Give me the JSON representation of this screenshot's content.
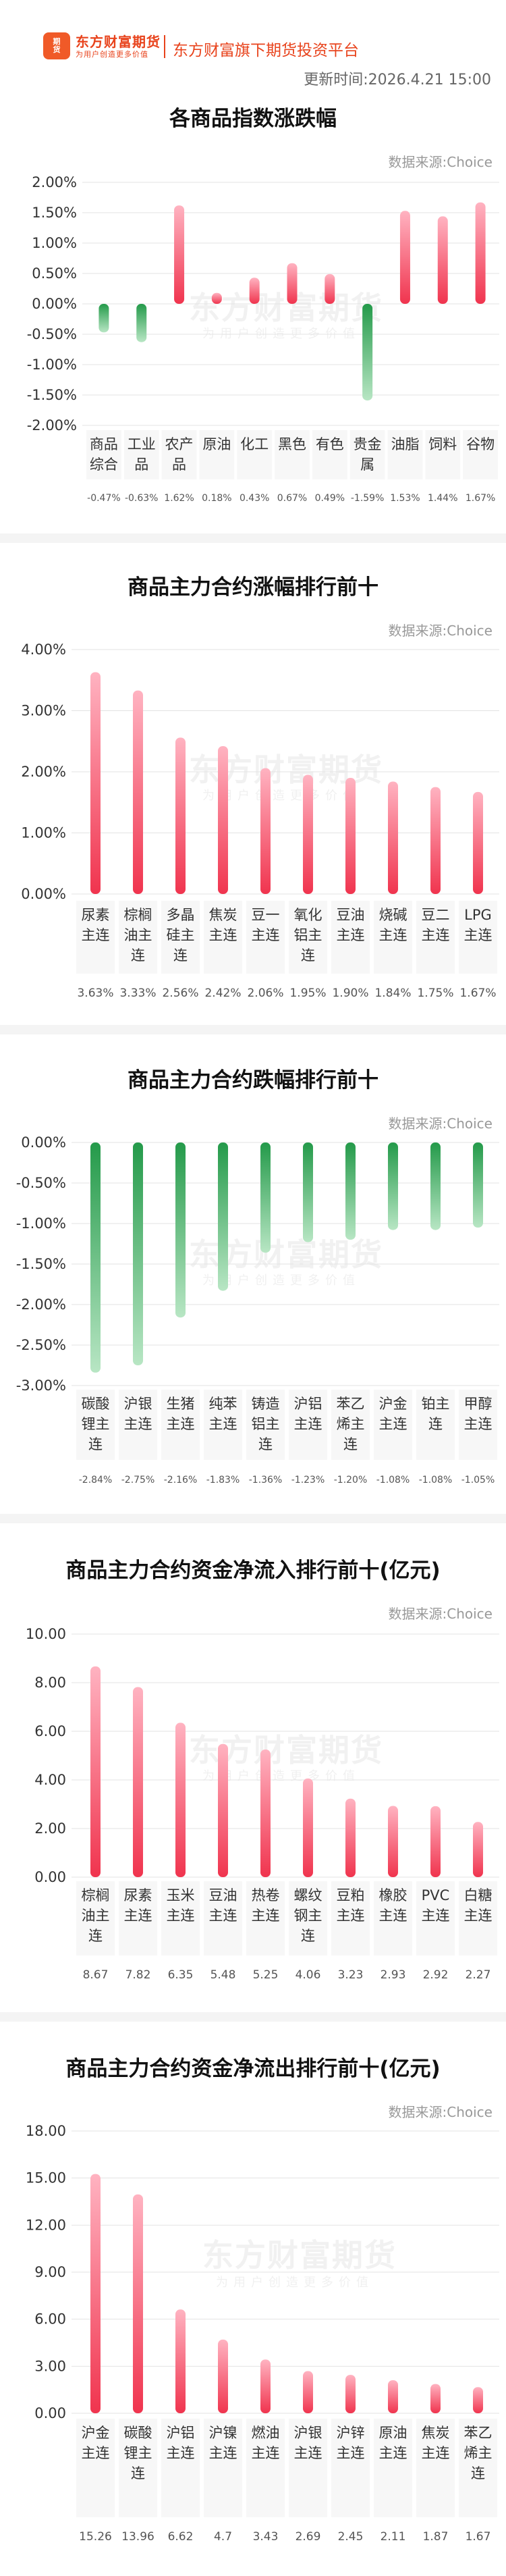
{
  "header": {
    "logo_line1": "期",
    "logo_line2": "货",
    "brand_name": "东方财富期货",
    "brand_slogan": "为用户创造更多价值",
    "platform": "东方财富旗下期货投资平台",
    "update_label": "更新时间:",
    "update_time": "2026.4.21 15:00"
  },
  "watermark": {
    "text": "东方财富期货",
    "sub": "为用户创造更多价值"
  },
  "colors": {
    "up_top": "#ffb3c1",
    "up_bottom": "#f0344e",
    "down_top": "#249a4a",
    "down_bottom": "#b8e6c4",
    "grid": "#e3e3e3",
    "axis_text": "#333333",
    "value_text": "#555555"
  },
  "charts": [
    {
      "title": "各商品指数涨跌幅",
      "source": "数据来源:Choice",
      "chart_data": {
        "type": "bar",
        "categories": [
          "商品综合",
          "工业品",
          "农产品",
          "原油",
          "化工",
          "黑色",
          "有色",
          "贵金属",
          "油脂",
          "饲料",
          "谷物"
        ],
        "values": [
          -0.47,
          -0.63,
          1.62,
          0.18,
          0.43,
          0.67,
          0.49,
          -1.59,
          1.53,
          1.44,
          1.67
        ],
        "value_labels": [
          "-0.47%",
          "-0.63%",
          "1.62%",
          "0.18%",
          "0.43%",
          "0.67%",
          "0.49%",
          "-1.59%",
          "1.53%",
          "1.44%",
          "1.67%"
        ],
        "ylim": [
          -2,
          2
        ],
        "yticks": [
          2,
          1.5,
          1,
          0.5,
          0,
          -0.5,
          -1,
          -1.5,
          -2
        ],
        "ytick_labels": [
          "2.00%",
          "1.50%",
          "1.00%",
          "0.50%",
          "0.00%",
          "-0.50%",
          "-1.00%",
          "-1.50%",
          "-2.00%"
        ],
        "grid": true
      }
    },
    {
      "title": "商品主力合约涨幅排行前十",
      "source": "数据来源:Choice",
      "chart_data": {
        "type": "bar",
        "categories": [
          "尿素主连",
          "棕榈油主连",
          "多晶硅主连",
          "焦炭主连",
          "豆一主连",
          "氧化铝主连",
          "豆油主连",
          "烧碱主连",
          "豆二主连",
          "LPG主连"
        ],
        "values": [
          3.63,
          3.33,
          2.56,
          2.42,
          2.06,
          1.95,
          1.9,
          1.84,
          1.75,
          1.67
        ],
        "value_labels": [
          "3.63%",
          "3.33%",
          "2.56%",
          "2.42%",
          "2.06%",
          "1.95%",
          "1.90%",
          "1.84%",
          "1.75%",
          "1.67%"
        ],
        "ylim": [
          0,
          4
        ],
        "yticks": [
          4,
          3,
          2,
          1,
          0
        ],
        "ytick_labels": [
          "4.00%",
          "3.00%",
          "2.00%",
          "1.00%",
          "0.00%"
        ],
        "grid": true
      }
    },
    {
      "title": "商品主力合约跌幅排行前十",
      "source": "数据来源:Choice",
      "chart_data": {
        "type": "bar",
        "categories": [
          "碳酸锂主连",
          "沪银主连",
          "生猪主连",
          "纯苯主连",
          "铸造铝主连",
          "沪铝主连",
          "苯乙烯主连",
          "沪金主连",
          "铂主连",
          "甲醇主连"
        ],
        "values": [
          -2.84,
          -2.75,
          -2.16,
          -1.83,
          -1.36,
          -1.23,
          -1.2,
          -1.08,
          -1.08,
          -1.05
        ],
        "value_labels": [
          "-2.84%",
          "-2.75%",
          "-2.16%",
          "-1.83%",
          "-1.36%",
          "-1.23%",
          "-1.20%",
          "-1.08%",
          "-1.08%",
          "-1.05%"
        ],
        "ylim": [
          -3,
          0
        ],
        "yticks": [
          0,
          -0.5,
          -1,
          -1.5,
          -2,
          -2.5,
          -3
        ],
        "ytick_labels": [
          "0.00%",
          "-0.50%",
          "-1.00%",
          "-1.50%",
          "-2.00%",
          "-2.50%",
          "-3.00%"
        ],
        "grid": true
      }
    },
    {
      "title": "商品主力合约资金净流入排行前十(亿元)",
      "source": "数据来源:Choice",
      "chart_data": {
        "type": "bar",
        "categories": [
          "棕榈油主连",
          "尿素主连",
          "玉米主连",
          "豆油主连",
          "热卷主连",
          "螺纹钢主连",
          "豆粕主连",
          "橡胶主连",
          "PVC主连",
          "白糖主连"
        ],
        "values": [
          8.67,
          7.82,
          6.35,
          5.48,
          5.25,
          4.06,
          3.23,
          2.93,
          2.92,
          2.27
        ],
        "value_labels": [
          "8.67",
          "7.82",
          "6.35",
          "5.48",
          "5.25",
          "4.06",
          "3.23",
          "2.93",
          "2.92",
          "2.27"
        ],
        "ylim": [
          0,
          10
        ],
        "yticks": [
          10,
          8,
          6,
          4,
          2,
          0
        ],
        "ytick_labels": [
          "10.00",
          "8.00",
          "6.00",
          "4.00",
          "2.00",
          "0.00"
        ],
        "grid": true
      }
    },
    {
      "title": "商品主力合约资金净流出排行前十(亿元)",
      "source": "数据来源:Choice",
      "chart_data": {
        "type": "bar",
        "categories": [
          "沪金主连",
          "碳酸锂主连",
          "沪铝主连",
          "沪镍主连",
          "燃油主连",
          "沪银主连",
          "沪锌主连",
          "原油主连",
          "焦炭主连",
          "苯乙烯主连"
        ],
        "values": [
          15.26,
          13.96,
          6.62,
          4.7,
          3.43,
          2.69,
          2.45,
          2.11,
          1.87,
          1.67
        ],
        "value_labels": [
          "15.26",
          "13.96",
          "6.62",
          "4.7",
          "3.43",
          "2.69",
          "2.45",
          "2.11",
          "1.87",
          "1.67"
        ],
        "ylim": [
          0,
          18
        ],
        "yticks": [
          18,
          15,
          12,
          9,
          6,
          3,
          0
        ],
        "ytick_labels": [
          "18.00",
          "15.00",
          "12.00",
          "9.00",
          "6.00",
          "3.00",
          "0.00"
        ],
        "grid": true
      }
    }
  ]
}
